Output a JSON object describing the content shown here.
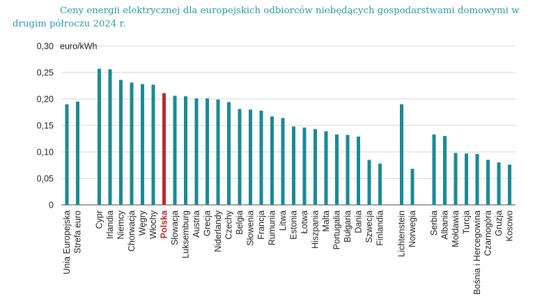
{
  "chart_data": {
    "type": "bar",
    "title": "Ceny energii elektrycznej dla europejskich odbiorców niebędących gospodarstwami domowymi w drugim półroczu 2024 r.",
    "ylabel": "euro/kWh",
    "ylim": [
      0,
      0.3
    ],
    "yticks": [
      "0",
      "0,05",
      "0,10",
      "0,15",
      "0,20",
      "0,25",
      "0,30"
    ],
    "grid": true,
    "colors": {
      "default": "#1a8a96",
      "highlight": "#c0272d",
      "title": "#2a9aa6"
    },
    "highlight": "Polska",
    "groups": [
      {
        "categories": [
          "Unia Europejska",
          "Strefa euro"
        ],
        "values": [
          0.19,
          0.195
        ]
      },
      {
        "categories": [
          "Cypr",
          "Irlandia",
          "Niemcy",
          "Chorwacja",
          "Węgry",
          "Włochy",
          "Polska",
          "Słowacja",
          "Luksemburg",
          "Austria",
          "Grecja",
          "Niderlandy",
          "Czechy",
          "Belgia",
          "Słowenia",
          "Francja",
          "Rumunia",
          "Litwa",
          "Estonia",
          "Łotwa",
          "Hiszpania",
          "Malta",
          "Portugalia",
          "Bułgaria",
          "Dania",
          "Szwecja",
          "Finlandia"
        ],
        "values": [
          0.257,
          0.256,
          0.236,
          0.231,
          0.228,
          0.227,
          0.211,
          0.206,
          0.205,
          0.201,
          0.201,
          0.199,
          0.194,
          0.181,
          0.18,
          0.178,
          0.167,
          0.164,
          0.148,
          0.146,
          0.143,
          0.139,
          0.133,
          0.132,
          0.129,
          0.085,
          0.078
        ]
      },
      {
        "categories": [
          "Lichtenstein",
          "Norwegia"
        ],
        "values": [
          0.19,
          0.068
        ]
      },
      {
        "categories": [
          "Serbia",
          "Albania",
          "Mołdawia",
          "Turcja",
          "Bośnia i Hercegowina",
          "Czarnogóra",
          "Gruzja",
          "Kosowo"
        ],
        "values": [
          0.133,
          0.13,
          0.098,
          0.097,
          0.096,
          0.085,
          0.08,
          0.076
        ]
      }
    ]
  }
}
